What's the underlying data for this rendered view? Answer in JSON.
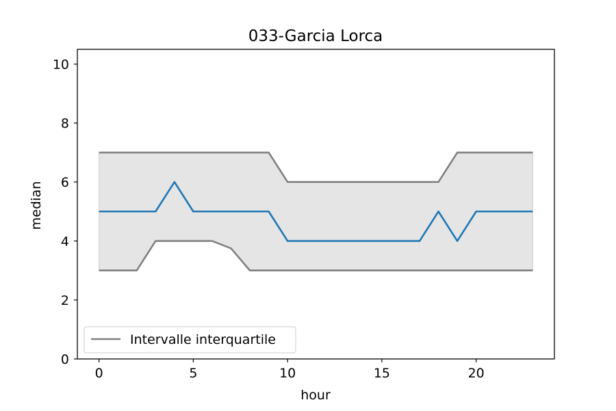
{
  "chart_data": {
    "type": "line",
    "title": "033-Garcia Lorca",
    "xlabel": "hour",
    "ylabel": "median",
    "xlim": [
      -1.15,
      24.15
    ],
    "ylim": [
      0,
      10.5
    ],
    "x_ticks": [
      0,
      5,
      10,
      15,
      20
    ],
    "y_ticks": [
      0,
      2,
      4,
      6,
      8,
      10
    ],
    "grid": false,
    "legend_position": "lower-left",
    "x": [
      0,
      1,
      2,
      3,
      4,
      5,
      6,
      7,
      8,
      9,
      10,
      11,
      12,
      13,
      14,
      15,
      16,
      17,
      18,
      19,
      20,
      21,
      22,
      23
    ],
    "median": {
      "color": "#1f77b4",
      "values": [
        5,
        5,
        5,
        5,
        6,
        5,
        5,
        5,
        5,
        5,
        4,
        4,
        4,
        4,
        4,
        4,
        4,
        4,
        5,
        4,
        5,
        5,
        5,
        5
      ]
    },
    "upper_quartile": {
      "name": "Intervalle interquartile",
      "color": "#808080",
      "values": [
        7,
        7,
        7,
        7,
        7,
        7,
        7,
        7,
        7,
        7,
        6,
        6,
        6,
        6,
        6,
        6,
        6,
        6,
        6,
        7,
        7,
        7,
        7,
        7
      ]
    },
    "lower_quartile": {
      "color": "#808080",
      "values": [
        3,
        3,
        3,
        4,
        4,
        4,
        4,
        3.75,
        3,
        3,
        3,
        3,
        3,
        3,
        3,
        3,
        3,
        3,
        3,
        3,
        3,
        3,
        3,
        3
      ]
    },
    "band_color": "#e5e5e5",
    "legend": [
      {
        "label": "Intervalle interquartile",
        "color": "#808080"
      }
    ]
  }
}
